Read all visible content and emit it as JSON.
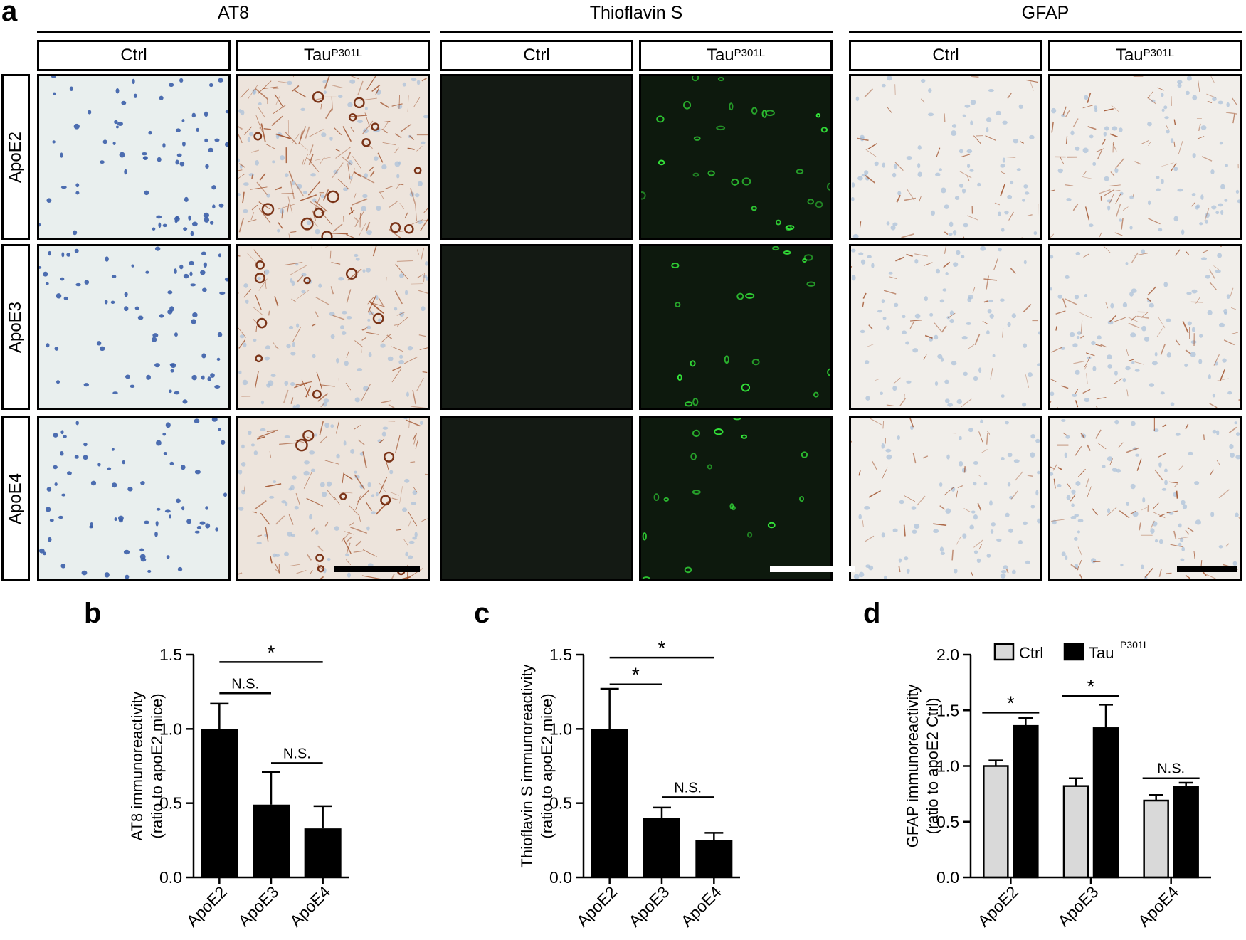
{
  "panel_labels": {
    "a": "a",
    "b": "b",
    "c": "c",
    "d": "d"
  },
  "groups": [
    {
      "title": "AT8",
      "stain": "dab"
    },
    {
      "title": "Thioflavin S",
      "stain": "fluor"
    },
    {
      "title": "GFAP",
      "stain": "gfap"
    }
  ],
  "columns": [
    {
      "label": "Ctrl",
      "sup": ""
    },
    {
      "label": "Tau",
      "sup": "P301L"
    }
  ],
  "rows": [
    "ApoE2",
    "ApoE3",
    "ApoE4"
  ],
  "colors": {
    "dab": "#a0502a",
    "fluor": "#34e83a",
    "hematoxylin": "#3b5ea8",
    "ctrl_bar": "#d9d9d9",
    "tau_bar": "#000000"
  },
  "chart_data": [
    {
      "type": "bar",
      "panel": "b",
      "ylabel_lines": [
        "AT8 immunoreactivity",
        "(ratio to apoE2 mice)"
      ],
      "categories": [
        "ApoE2",
        "ApoE3",
        "ApoE4"
      ],
      "values": [
        1.0,
        0.49,
        0.33
      ],
      "errors": [
        0.17,
        0.22,
        0.15
      ],
      "ylim": [
        0,
        1.5
      ],
      "yticks": [
        "0.0",
        "0.5",
        "1.0",
        "1.5"
      ],
      "annotations": [
        {
          "from": 0,
          "to": 1,
          "y": 1.24,
          "label": "N.S."
        },
        {
          "from": 1,
          "to": 2,
          "y": 0.77,
          "label": "N.S."
        },
        {
          "from": 0,
          "to": 2,
          "y": 1.45,
          "label": "*"
        }
      ]
    },
    {
      "type": "bar",
      "panel": "c",
      "ylabel_lines": [
        "Thioflavin S immunoreactivity",
        "(ratio to apoE2 mice)"
      ],
      "categories": [
        "ApoE2",
        "ApoE3",
        "ApoE4"
      ],
      "values": [
        1.0,
        0.4,
        0.25
      ],
      "errors": [
        0.27,
        0.07,
        0.05
      ],
      "ylim": [
        0,
        1.5
      ],
      "yticks": [
        "0.0",
        "0.5",
        "1.0",
        "1.5"
      ],
      "annotations": [
        {
          "from": 0,
          "to": 1,
          "y": 1.3,
          "label": "*"
        },
        {
          "from": 0,
          "to": 2,
          "y": 1.48,
          "label": "*"
        },
        {
          "from": 1,
          "to": 2,
          "y": 0.54,
          "label": "N.S."
        }
      ]
    },
    {
      "type": "bar",
      "panel": "d",
      "ylabel_lines": [
        "GFAP immunoreactivity",
        "(ratio to apoE2 Ctrl)"
      ],
      "categories": [
        "ApoE2",
        "ApoE3",
        "ApoE4"
      ],
      "series": [
        {
          "name": "Ctrl",
          "values": [
            1.0,
            0.82,
            0.69
          ],
          "errors": [
            0.05,
            0.07,
            0.05
          ]
        },
        {
          "name": "Tau",
          "name_sup": "P301L",
          "values": [
            1.36,
            1.34,
            0.81
          ],
          "errors": [
            0.07,
            0.21,
            0.04
          ]
        }
      ],
      "ylim": [
        0,
        2.0
      ],
      "yticks": [
        "0.0",
        "0.5",
        "1.0",
        "1.5",
        "2.0"
      ],
      "legend": "top-left",
      "annotations": [
        {
          "cat": 0,
          "y": 1.48,
          "label": "*"
        },
        {
          "cat": 1,
          "y": 1.63,
          "label": "*"
        },
        {
          "cat": 2,
          "y": 0.89,
          "label": "N.S."
        }
      ]
    }
  ]
}
